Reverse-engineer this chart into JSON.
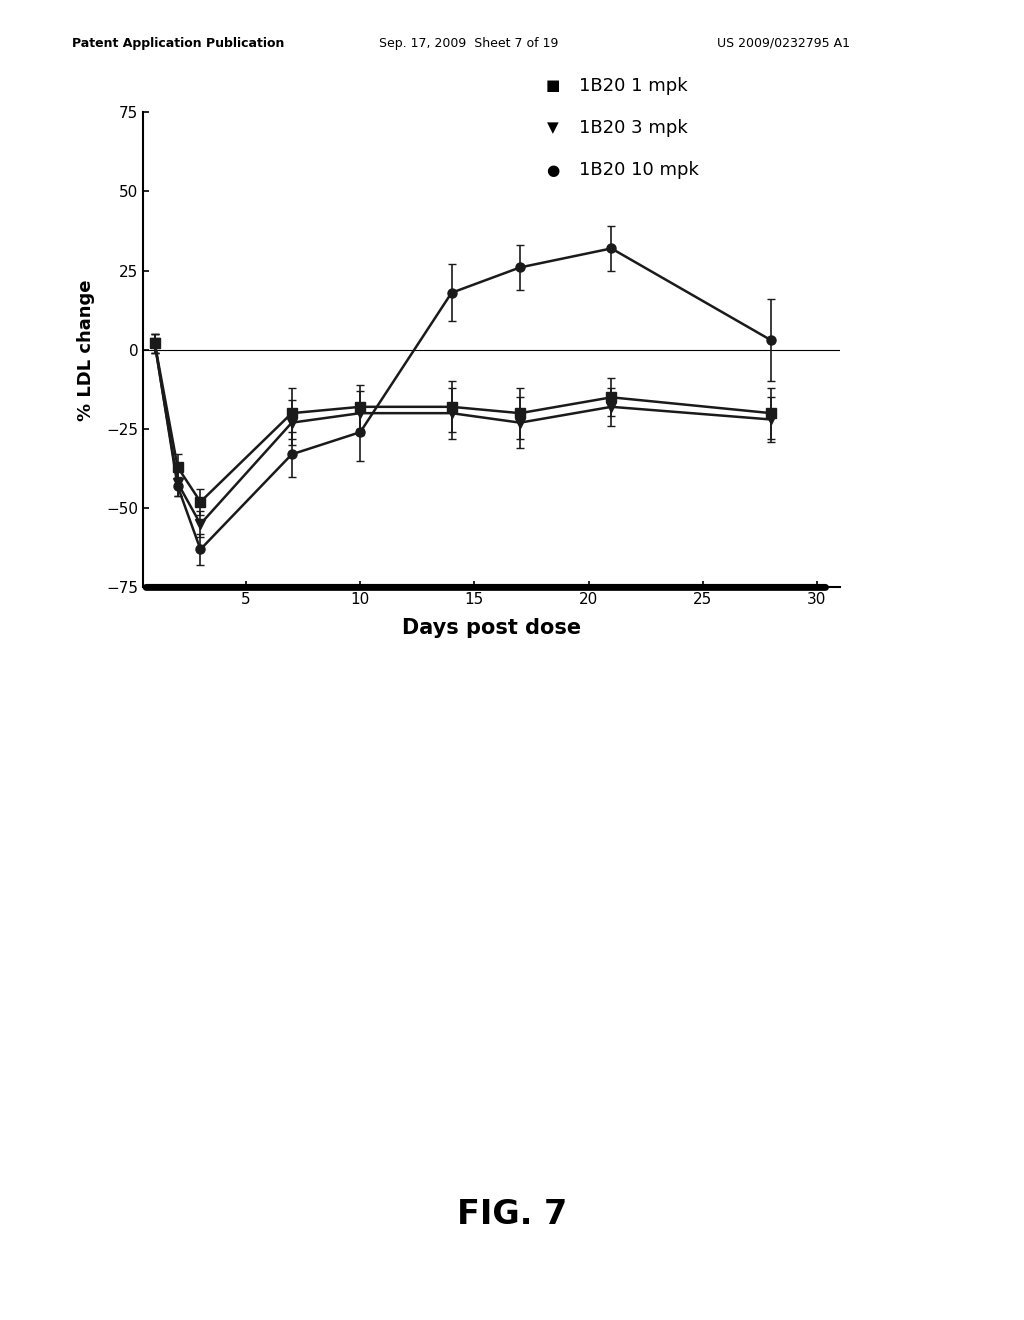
{
  "xlabel": "Days post dose",
  "ylabel": "% LDL change",
  "xlim": [
    0.5,
    31
  ],
  "ylim": [
    -75,
    75
  ],
  "yticks": [
    -75,
    -50,
    -25,
    0,
    25,
    50,
    75
  ],
  "xticks": [
    5,
    10,
    15,
    20,
    25,
    30
  ],
  "background_color": "#ffffff",
  "fig_label": "FIG. 7",
  "legend_labels": [
    "1B20 1 mpk",
    "1B20 3 mpk",
    "1B20 10 mpk"
  ],
  "series_color": "#1a1a1a",
  "series1": {
    "x": [
      1,
      2,
      3,
      7,
      10,
      14,
      17,
      21,
      28
    ],
    "y": [
      2,
      -37,
      -48,
      -20,
      -18,
      -18,
      -20,
      -15,
      -20
    ],
    "yerr": [
      3,
      4,
      4,
      8,
      7,
      8,
      8,
      6,
      8
    ],
    "marker": "s",
    "label": "1B20 1 mpk"
  },
  "series2": {
    "x": [
      1,
      2,
      3,
      7,
      10,
      14,
      17,
      21,
      28
    ],
    "y": [
      2,
      -42,
      -55,
      -23,
      -20,
      -20,
      -23,
      -18,
      -22
    ],
    "yerr": [
      3,
      4,
      4,
      7,
      7,
      8,
      8,
      6,
      7
    ],
    "marker": "v",
    "label": "1B20 3 mpk"
  },
  "series3": {
    "x": [
      1,
      2,
      3,
      7,
      10,
      14,
      17,
      21,
      28
    ],
    "y": [
      2,
      -43,
      -63,
      -33,
      -26,
      18,
      26,
      32,
      3
    ],
    "yerr": [
      3,
      3,
      5,
      7,
      9,
      9,
      7,
      7,
      13
    ],
    "marker": "o",
    "label": "1B20 10 mpk"
  },
  "header_left": "Patent Application Publication",
  "header_mid": "Sep. 17, 2009  Sheet 7 of 19",
  "header_right": "US 2009/0232795 A1"
}
